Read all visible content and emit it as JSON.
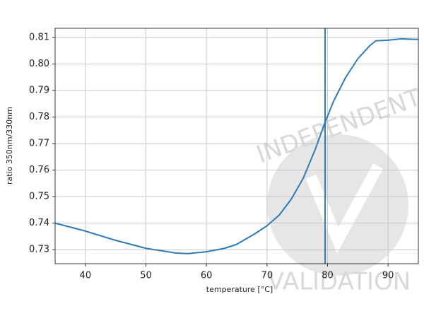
{
  "chart_data": {
    "type": "line",
    "x_label": "temperature [°C]",
    "y_label": "ratio 350nm/330nm",
    "x": [
      35,
      40,
      45,
      50,
      55,
      57,
      60,
      63,
      65,
      68,
      70,
      72,
      74,
      76,
      78,
      79.5,
      81,
      83,
      85,
      87,
      88,
      90,
      92,
      95
    ],
    "series": [
      {
        "color": "#2e7bb6",
        "values": [
          0.74,
          0.737,
          0.7335,
          0.7305,
          0.7287,
          0.7285,
          0.7292,
          0.7305,
          0.732,
          0.736,
          0.739,
          0.743,
          0.749,
          0.757,
          0.768,
          0.7775,
          0.786,
          0.795,
          0.802,
          0.807,
          0.8088,
          0.809,
          0.8095,
          0.8093
        ]
      }
    ],
    "vline": 79.6,
    "xlim": [
      35,
      95
    ],
    "xticks": [
      40,
      50,
      60,
      70,
      80,
      90
    ],
    "ylim": [
      0.7247,
      0.8135
    ],
    "yticks": [
      0.73,
      0.74,
      0.75,
      0.76,
      0.77,
      0.78,
      0.79,
      {
        "value": 0.8,
        "label": "0.80"
      },
      0.81
    ],
    "grid": true,
    "watermark": [
      "INDEPENDENT",
      "VALIDATION"
    ]
  }
}
